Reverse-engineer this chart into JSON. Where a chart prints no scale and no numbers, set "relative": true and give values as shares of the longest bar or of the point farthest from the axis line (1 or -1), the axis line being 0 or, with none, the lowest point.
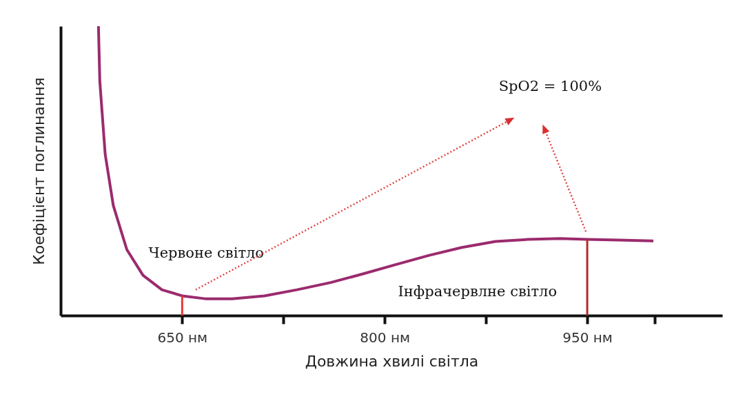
{
  "chart_data": {
    "type": "line",
    "relative": true,
    "xlabel": "Довжина хвилі світла",
    "ylabel": "Коефіцієнт поглинання",
    "xlim": [
      560,
      1050
    ],
    "xticks": [
      {
        "value": 650,
        "label": "650 нм"
      },
      {
        "value": 725,
        "label": null
      },
      {
        "value": 800,
        "label": "800 нм"
      },
      {
        "value": 875,
        "label": null
      },
      {
        "value": 950,
        "label": "950 нм"
      },
      {
        "value": 1000,
        "label": null
      }
    ],
    "series": [
      {
        "color": "#9b2b6e",
        "x": [
          588,
          589,
          593,
          599,
          609,
          621,
          635,
          650,
          667,
          687,
          711,
          735,
          760,
          784,
          809,
          833,
          857,
          882,
          906,
          930,
          950,
          974,
          999
        ],
        "values": [
          1,
          0.81,
          0.557,
          0.38,
          0.228,
          0.139,
          0.089,
          0.068,
          0.058,
          0.058,
          0.068,
          0.089,
          0.114,
          0.144,
          0.177,
          0.208,
          0.235,
          0.256,
          0.263,
          0.266,
          0.263,
          0.261,
          0.258
        ]
      },
      {
        "color": "#e53935",
        "x": [
          650,
          650
        ],
        "values": [
          0,
          0.068
        ]
      },
      {
        "color": "#b22a2a",
        "x": [
          950,
          950
        ],
        "values": [
          0,
          0.263
        ]
      }
    ],
    "annotations": [
      "Червоне світло",
      "Інфрачервлне світло",
      "SpO2 = 100%"
    ],
    "grid": false
  }
}
